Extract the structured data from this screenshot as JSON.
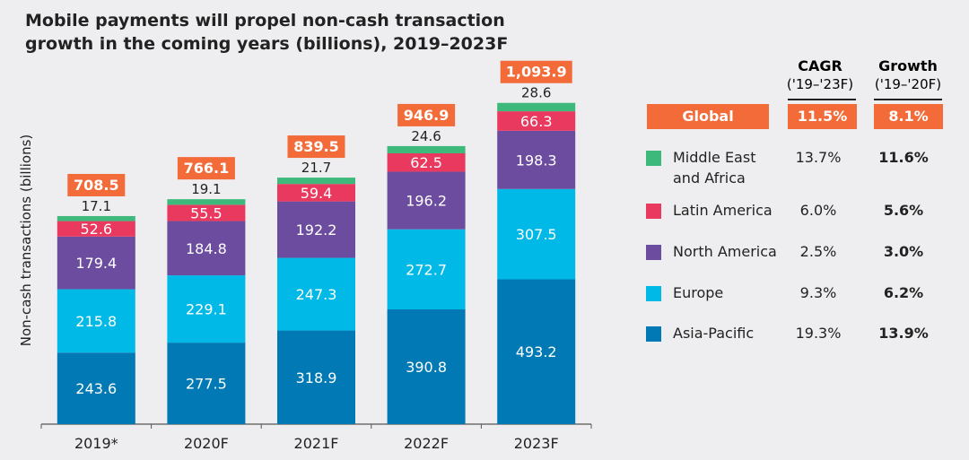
{
  "title": "Mobile payments will propel non-cash transaction growth in the coming years (billions), 2019–2023F",
  "colors": {
    "Asia-Pacific": "#0079b5",
    "Europe": "#00b9e6",
    "North America": "#6b4c9e",
    "Latin America": "#e9395e",
    "Middle East and Africa": "#3cb97b",
    "accent": "#f26b38"
  },
  "chart_data": {
    "type": "bar",
    "stacked": true,
    "title": "Mobile payments will propel non-cash transaction growth in the coming years (billions), 2019–2023F",
    "ylabel": "Non-cash transactions (billions)",
    "categories": [
      "2019*",
      "2020F",
      "2021F",
      "2022F",
      "2023F"
    ],
    "series": [
      {
        "name": "Asia-Pacific",
        "values": [
          243.6,
          277.5,
          318.9,
          390.8,
          493.2
        ]
      },
      {
        "name": "Europe",
        "values": [
          215.8,
          229.1,
          247.3,
          272.7,
          307.5
        ]
      },
      {
        "name": "North America",
        "values": [
          179.4,
          184.8,
          192.2,
          196.2,
          198.3
        ]
      },
      {
        "name": "Latin America",
        "values": [
          52.6,
          55.5,
          59.4,
          62.5,
          66.3
        ]
      },
      {
        "name": "Middle East and Africa",
        "values": [
          17.1,
          19.1,
          21.7,
          24.6,
          28.6
        ]
      }
    ],
    "totals": [
      "708.5",
      "766.1",
      "839.5",
      "946.9",
      "1,093.9"
    ],
    "ylim": [
      0,
      1100
    ],
    "grid": false,
    "legend": "right"
  },
  "table": {
    "headers": [
      {
        "title": "CAGR",
        "sub": "('19–'23F)"
      },
      {
        "title": "Growth",
        "sub": "('19–'20F)"
      }
    ],
    "global": {
      "label": "Global",
      "cagr": "11.5%",
      "growth": "8.1%"
    },
    "rows": [
      {
        "label": "Middle East and Africa",
        "label_line1": "Middle East",
        "label_line2": "and Africa",
        "cagr": "13.7%",
        "growth": "11.6%"
      },
      {
        "label": "Latin America",
        "cagr": "6.0%",
        "growth": "5.6%"
      },
      {
        "label": "North America",
        "cagr": "2.5%",
        "growth": "3.0%"
      },
      {
        "label": "Europe",
        "cagr": "9.3%",
        "growth": "6.2%"
      },
      {
        "label": "Asia-Pacific",
        "cagr": "19.3%",
        "growth": "13.9%"
      }
    ]
  }
}
